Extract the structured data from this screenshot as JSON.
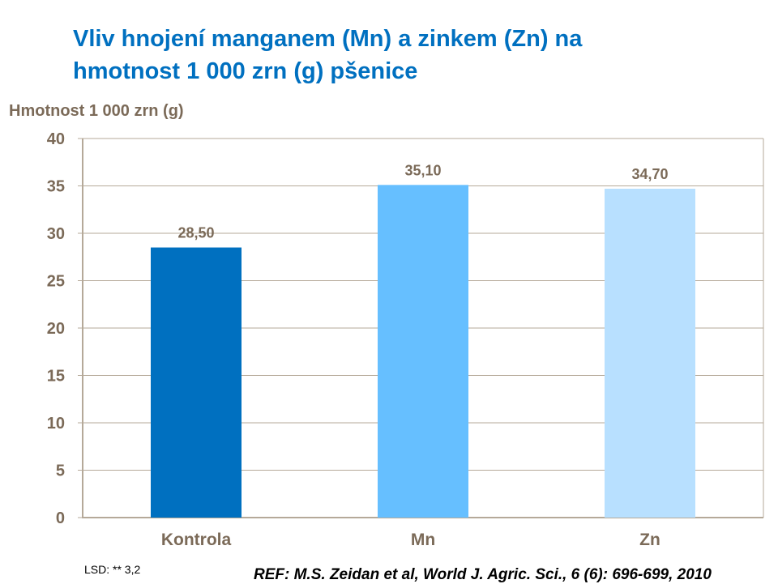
{
  "title_line1": "Vliv hnojení manganem (Mn) a zinkem (Zn) na",
  "title_line2": "hmotnost 1 000 zrn (g) pšenice",
  "footer": {
    "lsd": "LSD: ** 3,2",
    "ref": "REF: M.S. Zeidan et al, World J. Agric. Sci., 6 (6): 696-699, 2010"
  },
  "chart_data": {
    "type": "bar",
    "title": "Vliv hnojení manganem (Mn) a zinkem (Zn) na hmotnost 1 000 zrn (g) pšenice",
    "ylabel": "Hmotnost 1 000 zrn (g)",
    "xlabel": "",
    "categories": [
      "Kontrola",
      "Mn",
      "Zn"
    ],
    "values": [
      28.5,
      35.1,
      34.7
    ],
    "value_labels": [
      "28,50",
      "35,10",
      "34,70"
    ],
    "colors": [
      "#0070C0",
      "#66BFFF",
      "#B8E0FF"
    ],
    "ylim": [
      0,
      40
    ],
    "yticks": [
      0,
      5,
      10,
      15,
      20,
      25,
      30,
      35,
      40
    ],
    "grid": true,
    "legend": "none"
  }
}
